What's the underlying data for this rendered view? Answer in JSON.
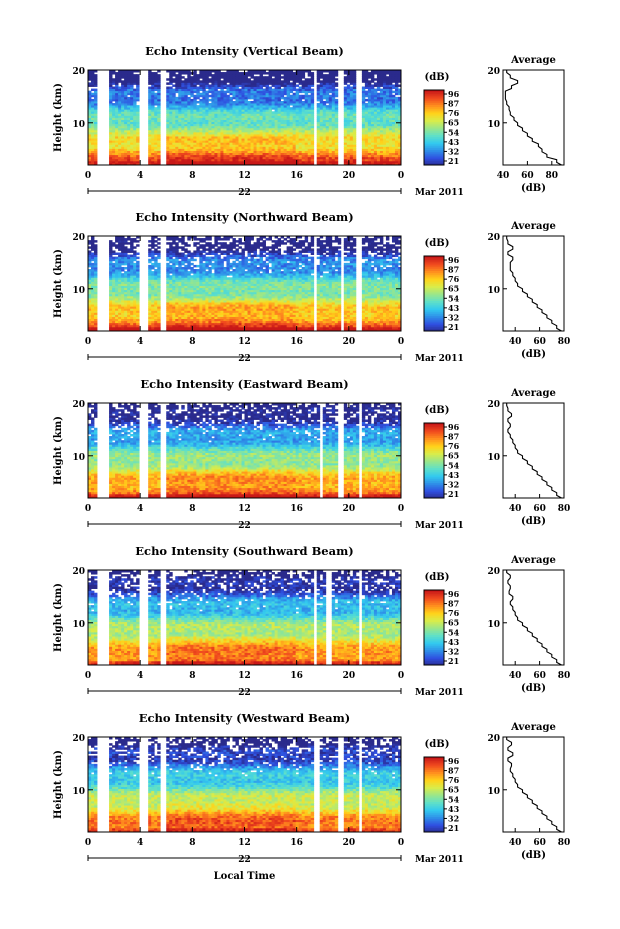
{
  "figure": {
    "xlabel": "Local Time",
    "ylabel": "Height (km)",
    "month_label": "Mar 2011",
    "date_label": "22",
    "colorbar_unit": "(dB)",
    "average_title": "Average",
    "average_xlabel": "(dB)"
  },
  "chart_data": [
    {
      "type": "heatmap",
      "title": "Echo Intensity (Vertical Beam)",
      "x_range_hours": [
        0,
        24
      ],
      "x_ticks": [
        "0",
        "4",
        "8",
        "12",
        "16",
        "20",
        "0"
      ],
      "y_range_km": [
        2,
        20
      ],
      "y_ticks": [
        "20",
        "10"
      ],
      "colorbar_ticks": [
        "96",
        "87",
        "76",
        "65",
        "54",
        "43",
        "32",
        "21"
      ],
      "colorbar_range_db": [
        21,
        96
      ],
      "data_gaps_hours": [
        [
          0.6,
          1.6
        ],
        [
          4.0,
          4.5
        ],
        [
          5.5,
          6.0
        ],
        [
          17.3,
          17.5
        ],
        [
          19.2,
          19.5
        ],
        [
          20.5,
          21.0
        ]
      ],
      "profile": {
        "x_range": [
          40,
          90
        ],
        "x_ticks": [
          "40",
          "60",
          "80"
        ],
        "y_ticks": [
          "20",
          "10"
        ],
        "height_km": [
          2,
          3,
          4,
          5,
          6,
          7,
          8,
          9,
          10,
          11,
          12,
          13,
          14,
          15,
          16,
          17,
          18,
          19,
          20
        ],
        "db": [
          88,
          84,
          76,
          72,
          69,
          64,
          60,
          56,
          52,
          49,
          46,
          45,
          43,
          42,
          42,
          47,
          52,
          46,
          43
        ]
      }
    },
    {
      "type": "heatmap",
      "title": "Echo Intensity (Northward Beam)",
      "x_range_hours": [
        0,
        24
      ],
      "x_ticks": [
        "0",
        "4",
        "8",
        "12",
        "16",
        "20",
        "0"
      ],
      "y_range_km": [
        2,
        20
      ],
      "y_ticks": [
        "20",
        "10"
      ],
      "colorbar_ticks": [
        "96",
        "87",
        "76",
        "65",
        "54",
        "43",
        "32",
        "21"
      ],
      "colorbar_range_db": [
        21,
        96
      ],
      "data_gaps_hours": [
        [
          0.6,
          1.6
        ],
        [
          4.0,
          4.5
        ],
        [
          5.5,
          6.0
        ],
        [
          17.3,
          17.6
        ],
        [
          19.3,
          19.6
        ],
        [
          20.6,
          21.0
        ]
      ],
      "profile": {
        "x_range": [
          30,
          80
        ],
        "x_ticks": [
          "40",
          "60",
          "80"
        ],
        "y_ticks": [
          "20",
          "10"
        ],
        "height_km": [
          2,
          3,
          4,
          5,
          6,
          7,
          8,
          9,
          10,
          11,
          12,
          13,
          14,
          15,
          16,
          17,
          18,
          19,
          20
        ],
        "db": [
          78,
          74,
          70,
          66,
          62,
          58,
          54,
          50,
          46,
          42,
          40,
          38,
          36,
          36,
          38,
          34,
          38,
          34,
          33
        ]
      }
    },
    {
      "type": "heatmap",
      "title": "Echo Intensity (Eastward Beam)",
      "x_range_hours": [
        0,
        24
      ],
      "x_ticks": [
        "0",
        "4",
        "8",
        "12",
        "16",
        "20",
        "0"
      ],
      "y_range_km": [
        2,
        20
      ],
      "y_ticks": [
        "20",
        "10"
      ],
      "colorbar_ticks": [
        "96",
        "87",
        "76",
        "65",
        "54",
        "43",
        "32",
        "21"
      ],
      "colorbar_range_db": [
        21,
        96
      ],
      "data_gaps_hours": [
        [
          0.6,
          1.6
        ],
        [
          4.0,
          4.5
        ],
        [
          5.5,
          6.0
        ],
        [
          17.7,
          18.0
        ],
        [
          19.2,
          19.5
        ],
        [
          20.8,
          21.1
        ]
      ],
      "profile": {
        "x_range": [
          30,
          80
        ],
        "x_ticks": [
          "40",
          "60",
          "80"
        ],
        "y_ticks": [
          "20",
          "10"
        ],
        "height_km": [
          2,
          3,
          4,
          5,
          6,
          7,
          8,
          9,
          10,
          11,
          12,
          13,
          14,
          15,
          16,
          17,
          18,
          19,
          20
        ],
        "db": [
          78,
          74,
          70,
          66,
          62,
          58,
          54,
          50,
          46,
          42,
          40,
          38,
          36,
          34,
          36,
          34,
          37,
          34,
          33
        ]
      }
    },
    {
      "type": "heatmap",
      "title": "Echo Intensity (Southward Beam)",
      "x_range_hours": [
        0,
        24
      ],
      "x_ticks": [
        "0",
        "4",
        "8",
        "12",
        "16",
        "20",
        "0"
      ],
      "y_range_km": [
        2,
        20
      ],
      "y_ticks": [
        "20",
        "10"
      ],
      "colorbar_ticks": [
        "96",
        "87",
        "76",
        "65",
        "54",
        "43",
        "32",
        "21"
      ],
      "colorbar_range_db": [
        21,
        96
      ],
      "data_gaps_hours": [
        [
          0.6,
          1.6
        ],
        [
          4.0,
          4.5
        ],
        [
          5.5,
          6.0
        ],
        [
          17.2,
          17.5
        ],
        [
          18.3,
          18.6
        ],
        [
          20.8,
          21.1
        ]
      ],
      "profile": {
        "x_range": [
          30,
          80
        ],
        "x_ticks": [
          "40",
          "60",
          "80"
        ],
        "y_ticks": [
          "20",
          "10"
        ],
        "height_km": [
          2,
          3,
          4,
          5,
          6,
          7,
          8,
          9,
          10,
          11,
          12,
          13,
          14,
          15,
          16,
          17,
          18,
          19,
          20
        ],
        "db": [
          78,
          74,
          70,
          66,
          62,
          58,
          54,
          50,
          46,
          42,
          40,
          38,
          36,
          38,
          35,
          36,
          34,
          36,
          33
        ]
      }
    },
    {
      "type": "heatmap",
      "title": "Echo Intensity (Westward Beam)",
      "x_range_hours": [
        0,
        24
      ],
      "x_ticks": [
        "0",
        "4",
        "8",
        "12",
        "16",
        "20",
        "0"
      ],
      "y_range_km": [
        2,
        20
      ],
      "y_ticks": [
        "20",
        "10"
      ],
      "colorbar_ticks": [
        "96",
        "87",
        "76",
        "65",
        "54",
        "43",
        "32",
        "21"
      ],
      "colorbar_range_db": [
        21,
        96
      ],
      "data_gaps_hours": [
        [
          0.6,
          1.6
        ],
        [
          4.0,
          4.5
        ],
        [
          5.5,
          6.0
        ],
        [
          17.4,
          17.7
        ],
        [
          19.2,
          19.5
        ],
        [
          20.8,
          21.1
        ]
      ],
      "profile": {
        "x_range": [
          30,
          80
        ],
        "x_ticks": [
          "40",
          "60",
          "80"
        ],
        "y_ticks": [
          "20",
          "10"
        ],
        "height_km": [
          2,
          3,
          4,
          5,
          6,
          7,
          8,
          9,
          10,
          11,
          12,
          13,
          14,
          15,
          16,
          17,
          18,
          19,
          20
        ],
        "db": [
          78,
          74,
          70,
          66,
          62,
          58,
          54,
          50,
          46,
          42,
          40,
          38,
          36,
          37,
          34,
          38,
          34,
          37,
          33
        ]
      }
    }
  ],
  "colors": {
    "colormap": [
      "#2a2a8c",
      "#2f4fe0",
      "#2f8fe8",
      "#33c9ef",
      "#5fe0c8",
      "#9ae68a",
      "#d9ec4a",
      "#ffd21a",
      "#ff8f1e",
      "#f04a1e",
      "#c81818"
    ],
    "gap": "#ffffff",
    "axis": "#000000"
  }
}
